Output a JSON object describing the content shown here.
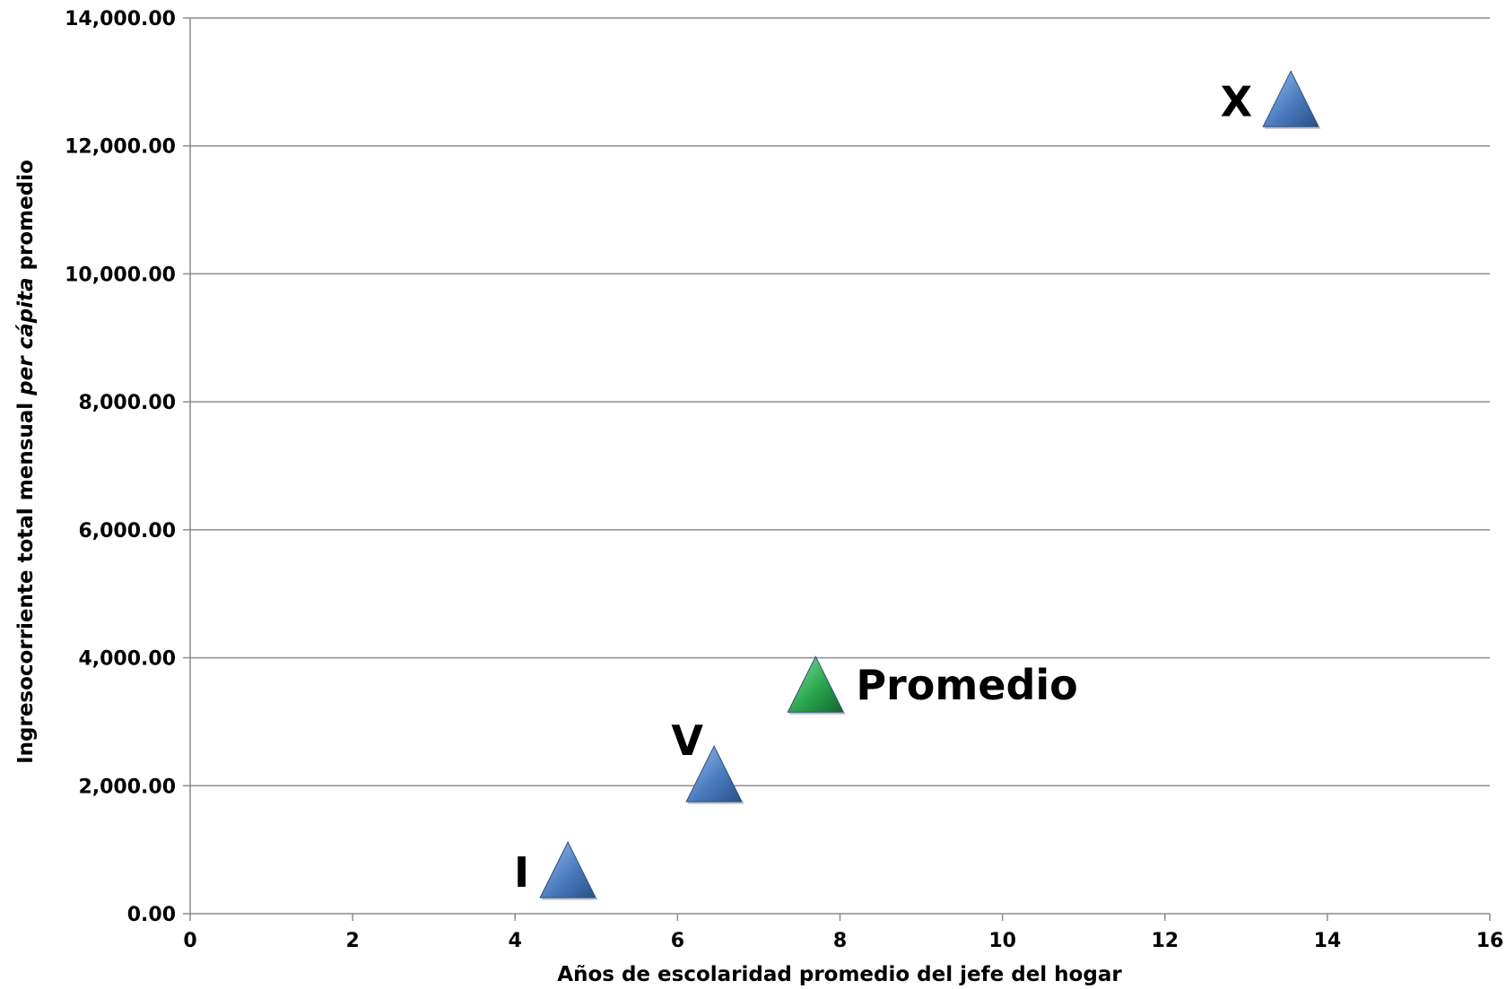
{
  "chart_data": {
    "type": "scatter",
    "title": "",
    "xlabel": "Años de escolaridad promedio del jefe del hogar",
    "ylabel": {
      "part1": "Ingresocorriente total mensual ",
      "part2": "per cápita",
      "part3": " promedio"
    },
    "xlim": [
      0,
      16
    ],
    "ylim": [
      0,
      14000
    ],
    "x_ticks": [
      0,
      2,
      4,
      6,
      8,
      10,
      12,
      14,
      16
    ],
    "x_tick_labels": [
      "0",
      "2",
      "4",
      "6",
      "8",
      "10",
      "12",
      "14",
      "16"
    ],
    "y_ticks": [
      0,
      2000,
      4000,
      6000,
      8000,
      10000,
      12000,
      14000
    ],
    "y_tick_labels": [
      "0.00",
      "2,000.00",
      "4,000.00",
      "6,000.00",
      "8,000.00",
      "10,000.00",
      "12,000.00",
      "14,000.00"
    ],
    "grid": "horizontal",
    "marker": "triangle",
    "points": [
      {
        "label": "I",
        "x": 4.65,
        "y": 250,
        "color": "#4a7cc0"
      },
      {
        "label": "V",
        "x": 6.45,
        "y": 1750,
        "color": "#4a7cc0"
      },
      {
        "label": "Promedio",
        "x": 7.7,
        "y": 3150,
        "color": "#2aa64e"
      },
      {
        "label": "X",
        "x": 13.55,
        "y": 12300,
        "color": "#4a7cc0"
      }
    ]
  }
}
